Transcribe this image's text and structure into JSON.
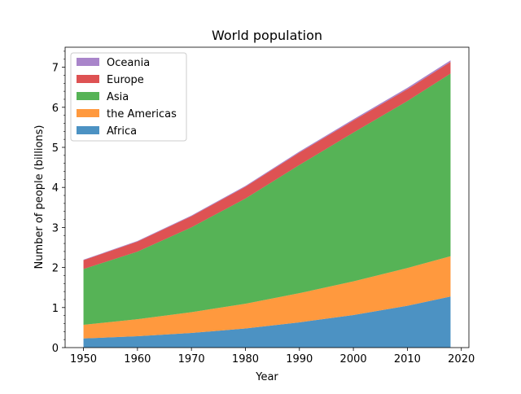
{
  "chart_data": {
    "type": "area",
    "stacked": true,
    "title": "World population",
    "xlabel": "Year",
    "ylabel": "Number of people (billions)",
    "x": [
      1950,
      1960,
      1970,
      1980,
      1990,
      2000,
      2010,
      2018
    ],
    "xlim": [
      1946.6,
      2021.4
    ],
    "ylim": [
      0,
      7.5
    ],
    "xticks": [
      1950,
      1960,
      1970,
      1980,
      1990,
      2000,
      2010,
      2020
    ],
    "yticks": [
      0,
      1,
      2,
      3,
      4,
      5,
      6,
      7
    ],
    "grid": false,
    "legend_position": "upper-left",
    "series": [
      {
        "name": "Africa",
        "color": "#1f77b4",
        "values": [
          0.228,
          0.284,
          0.365,
          0.477,
          0.631,
          0.814,
          1.044,
          1.275
        ]
      },
      {
        "name": "the Americas",
        "color": "#ff7f0e",
        "values": [
          0.34,
          0.425,
          0.519,
          0.619,
          0.727,
          0.84,
          0.943,
          1.006
        ]
      },
      {
        "name": "Asia",
        "color": "#2ca02c",
        "values": [
          1.394,
          1.686,
          2.12,
          2.625,
          3.202,
          3.714,
          4.169,
          4.56
        ]
      },
      {
        "name": "Europe",
        "color": "#d62728",
        "values": [
          0.22,
          0.253,
          0.276,
          0.295,
          0.31,
          0.303,
          0.294,
          0.293
        ]
      },
      {
        "name": "Oceania",
        "color": "#9467bd",
        "values": [
          0.012,
          0.015,
          0.019,
          0.022,
          0.026,
          0.031,
          0.036,
          0.039
        ]
      }
    ]
  }
}
